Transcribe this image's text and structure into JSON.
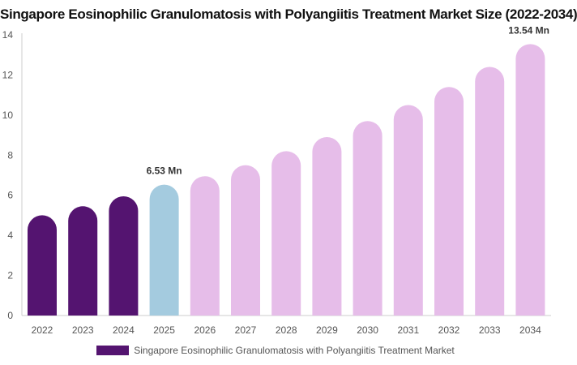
{
  "chart_data": {
    "type": "bar",
    "title": "Singapore Eosinophilic Granulomatosis with Polyangiitis Treatment Market Size (2022-2034)",
    "xlabel": "",
    "ylabel": "",
    "categories": [
      "2022",
      "2023",
      "2024",
      "2025",
      "2026",
      "2027",
      "2028",
      "2029",
      "2030",
      "2031",
      "2032",
      "2033",
      "2034"
    ],
    "series": [
      {
        "name": "Singapore Eosinophilic Granulomatosis with Polyangiitis Treatment Market",
        "values": [
          5.0,
          5.45,
          5.95,
          6.53,
          6.95,
          7.5,
          8.2,
          8.9,
          9.7,
          10.5,
          11.4,
          12.4,
          13.54
        ]
      }
    ],
    "bar_colors": [
      "#541470",
      "#541470",
      "#541470",
      "#a4cbdf",
      "#e6bde9",
      "#e6bde9",
      "#e6bde9",
      "#e6bde9",
      "#e6bde9",
      "#e6bde9",
      "#e6bde9",
      "#e6bde9",
      "#e6bde9"
    ],
    "data_labels": [
      {
        "index": 3,
        "text": "6.53 Mn"
      },
      {
        "index": 12,
        "text": "13.54 Mn"
      }
    ],
    "ylim": [
      0,
      14
    ],
    "yticks": [
      0,
      2,
      4,
      6,
      8,
      10,
      12,
      14
    ],
    "grid": false,
    "legend_position": "bottom",
    "legend_color": "#541470"
  }
}
